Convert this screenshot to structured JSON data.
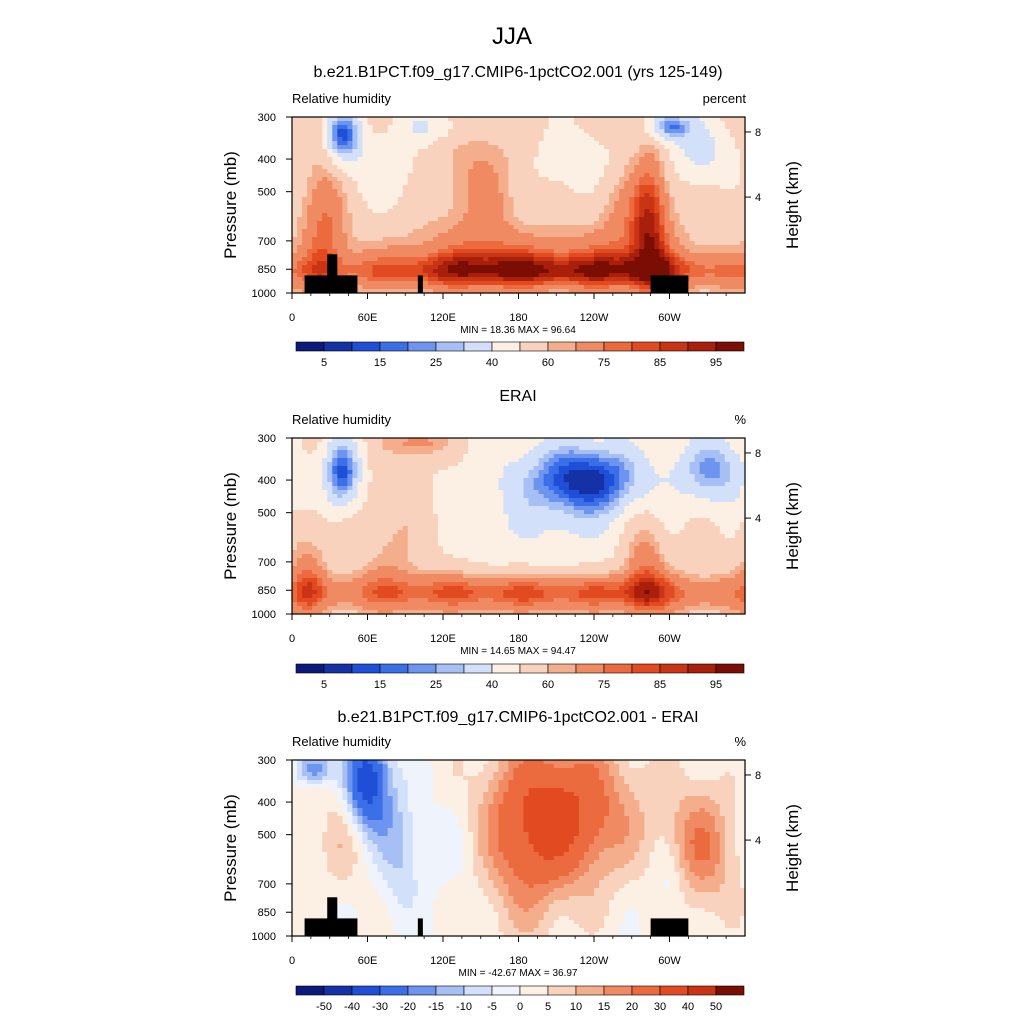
{
  "figure": {
    "title": "JJA"
  },
  "chart_data": [
    {
      "type": "heatmap",
      "title": "b.e21.B1PCT.f09_g17.CMIP6-1pctCO2.001 (yrs 125-149)",
      "left_label": "Relative humidity",
      "right_label": "percent",
      "ylabel": "Pressure (mb)",
      "y2label": "Height (km)",
      "x_ticks": [
        "0",
        "60E",
        "120E",
        "180",
        "120W",
        "60W"
      ],
      "y_ticks": [
        "300",
        "400",
        "500",
        "700",
        "850",
        "1000"
      ],
      "y2_ticks": [
        "8",
        "4"
      ],
      "stats": "MIN = 18.36   MAX = 96.64",
      "min": 18.36,
      "max": 96.64,
      "colorbar_labels": [
        "5",
        "15",
        "25",
        "40",
        "60",
        "75",
        "85",
        "95"
      ],
      "colors": [
        "#0b1a7a",
        "#1531a6",
        "#1f4fd6",
        "#3b6fe8",
        "#6d95ef",
        "#a6bff5",
        "#d3e0fa",
        "#fcefe3",
        "#f8d2bc",
        "#f4ae8c",
        "#f08a62",
        "#eb6a3e",
        "#e24a22",
        "#c93415",
        "#a8200b",
        "#7a0d04"
      ]
    },
    {
      "type": "heatmap",
      "title": "ERAI",
      "left_label": "Relative humidity",
      "right_label": "%",
      "ylabel": "Pressure (mb)",
      "y2label": "Height (km)",
      "x_ticks": [
        "0",
        "60E",
        "120E",
        "180",
        "120W",
        "60W"
      ],
      "y_ticks": [
        "300",
        "400",
        "500",
        "700",
        "850",
        "1000"
      ],
      "y2_ticks": [
        "8",
        "4"
      ],
      "stats": "MIN = 14.65   MAX = 94.47",
      "min": 14.65,
      "max": 94.47,
      "colorbar_labels": [
        "5",
        "15",
        "25",
        "40",
        "60",
        "75",
        "85",
        "95"
      ],
      "colors": [
        "#0b1a7a",
        "#1531a6",
        "#1f4fd6",
        "#3b6fe8",
        "#6d95ef",
        "#a6bff5",
        "#d3e0fa",
        "#fcefe3",
        "#f8d2bc",
        "#f4ae8c",
        "#f08a62",
        "#eb6a3e",
        "#e24a22",
        "#c93415",
        "#a8200b",
        "#7a0d04"
      ]
    },
    {
      "type": "heatmap",
      "title": "b.e21.B1PCT.f09_g17.CMIP6-1pctCO2.001 - ERAI",
      "left_label": "Relative humidity",
      "right_label": "%",
      "ylabel": "Pressure (mb)",
      "y2label": "Height (km)",
      "x_ticks": [
        "0",
        "60E",
        "120E",
        "180",
        "120W",
        "60W"
      ],
      "y_ticks": [
        "300",
        "400",
        "500",
        "700",
        "850",
        "1000"
      ],
      "y2_ticks": [
        "8",
        "4"
      ],
      "stats": "MIN = -42.67   MAX = 36.97",
      "min": -42.67,
      "max": 36.97,
      "colorbar_labels": [
        "-50",
        "-40",
        "-30",
        "-20",
        "-15",
        "-10",
        "-5",
        "0",
        "5",
        "10",
        "15",
        "20",
        "30",
        "40",
        "50"
      ],
      "colors": [
        "#0b1a7a",
        "#1531a6",
        "#1f4fd6",
        "#3b6fe8",
        "#6d95ef",
        "#a6bff5",
        "#d3e0fa",
        "#eef3fc",
        "#fcefe3",
        "#f8d2bc",
        "#f4ae8c",
        "#f08a62",
        "#eb6a3e",
        "#e24a22",
        "#c93415",
        "#7a0d04"
      ]
    }
  ]
}
